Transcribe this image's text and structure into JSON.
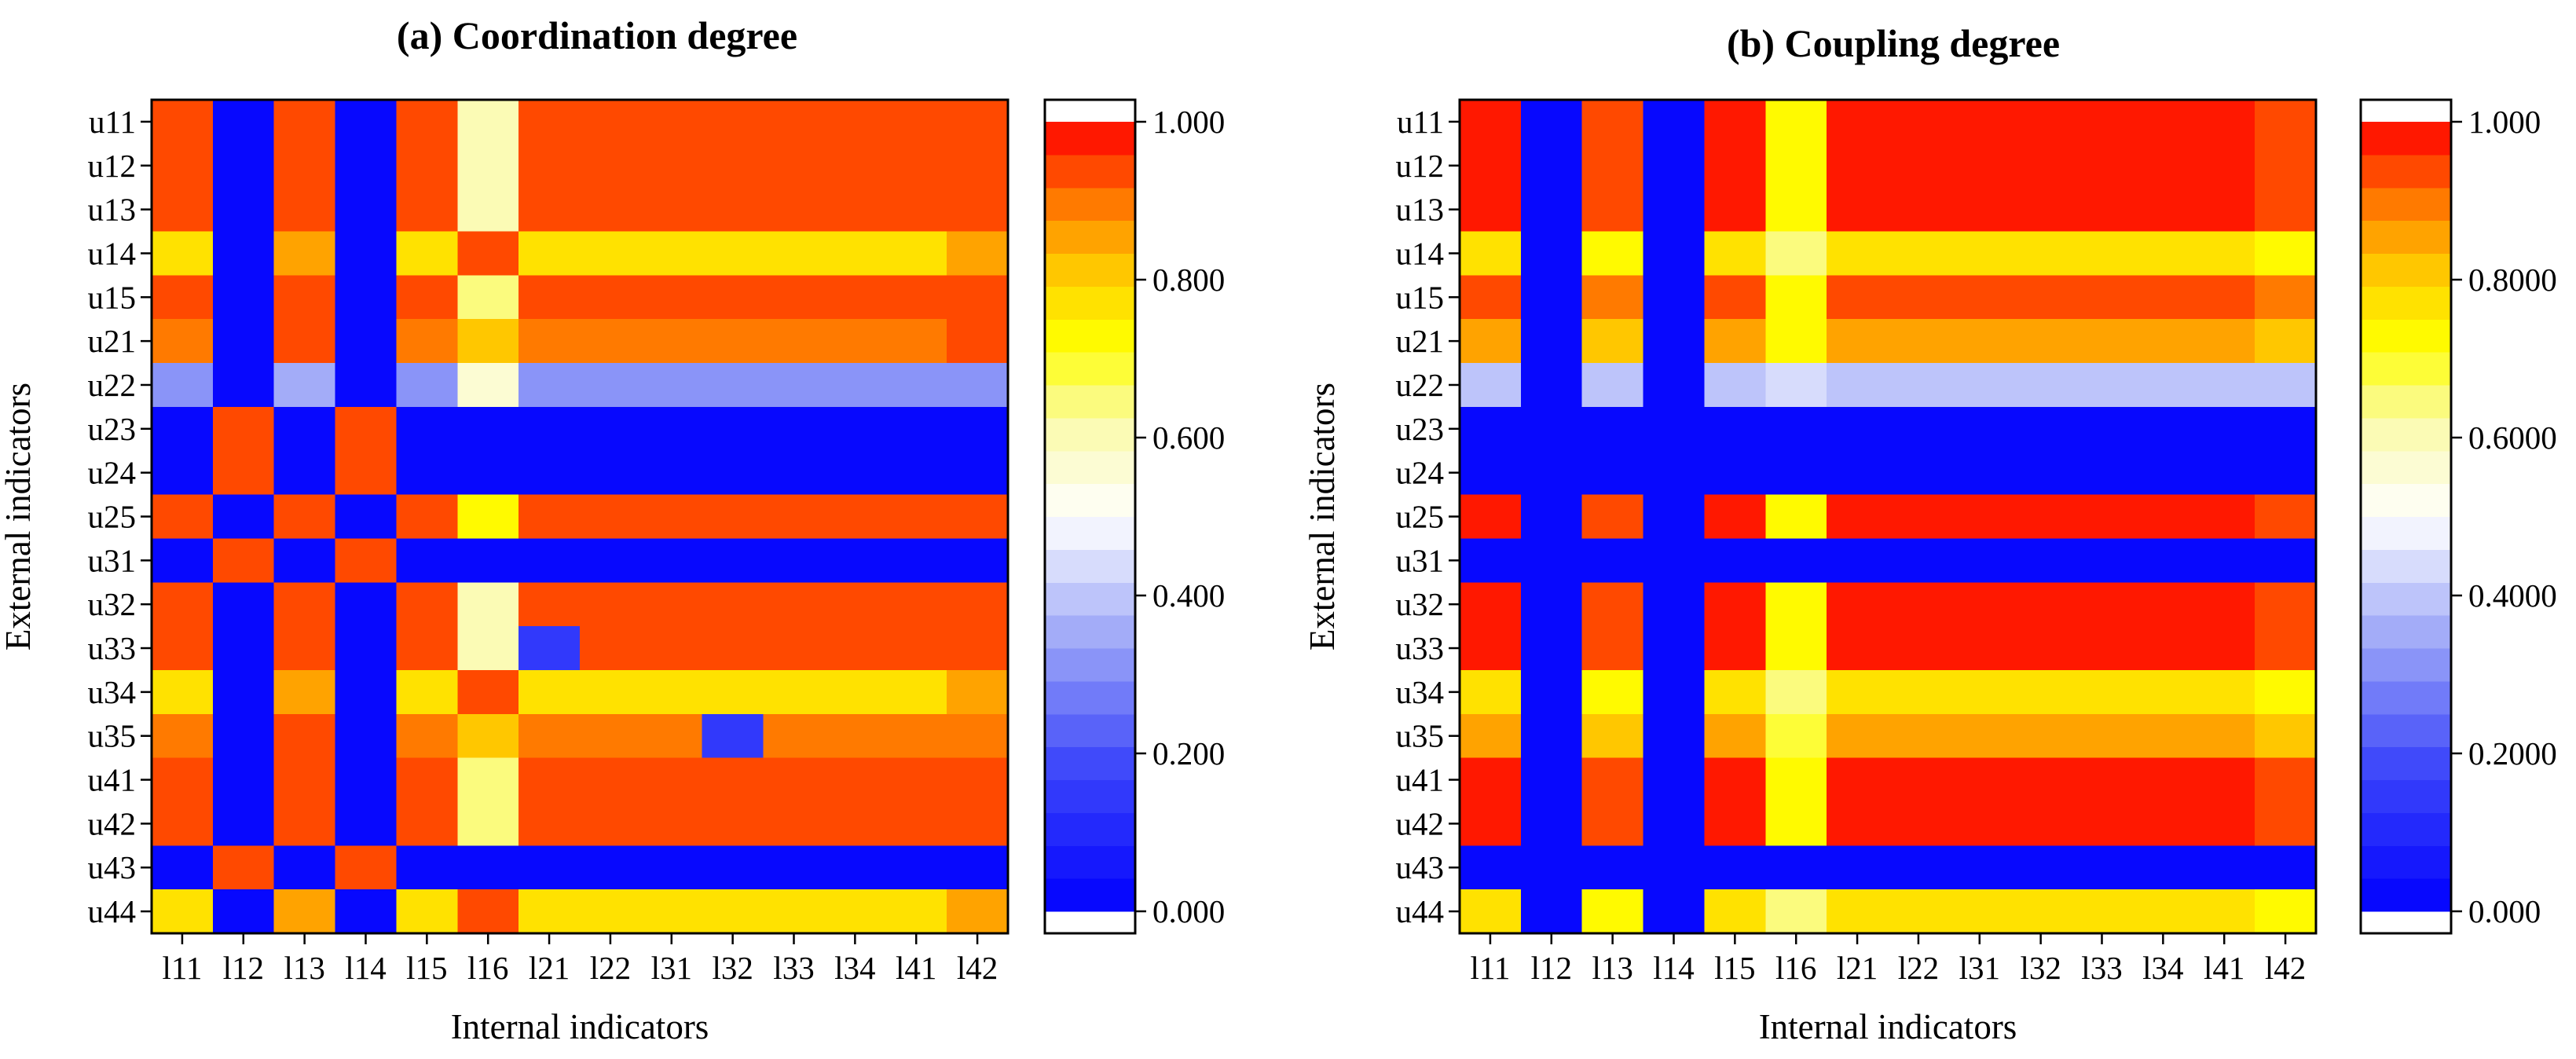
{
  "chart_data": [
    {
      "type": "heatmap",
      "title": "(a) Coordination degree",
      "xlabel": "Internal indicators",
      "ylabel": "External indicators",
      "x_categories": [
        "l11",
        "l12",
        "l13",
        "l14",
        "l15",
        "l16",
        "l21",
        "l22",
        "l31",
        "l32",
        "l33",
        "l34",
        "l41",
        "l42"
      ],
      "y_categories": [
        "u11",
        "u12",
        "u13",
        "u14",
        "u15",
        "u21",
        "u22",
        "u23",
        "u24",
        "u25",
        "u31",
        "u32",
        "u33",
        "u34",
        "u35",
        "u41",
        "u42",
        "u43",
        "u44"
      ],
      "values": [
        [
          0.95,
          0.02,
          0.95,
          0.02,
          0.95,
          0.62,
          0.95,
          0.95,
          0.95,
          0.95,
          0.95,
          0.95,
          0.95,
          0.95
        ],
        [
          0.95,
          0.02,
          0.95,
          0.02,
          0.95,
          0.62,
          0.95,
          0.95,
          0.95,
          0.95,
          0.95,
          0.95,
          0.95,
          0.95
        ],
        [
          0.95,
          0.02,
          0.95,
          0.02,
          0.95,
          0.62,
          0.95,
          0.95,
          0.95,
          0.95,
          0.95,
          0.95,
          0.95,
          0.95
        ],
        [
          0.79,
          0.02,
          0.87,
          0.02,
          0.79,
          0.95,
          0.79,
          0.79,
          0.79,
          0.79,
          0.79,
          0.79,
          0.79,
          0.85
        ],
        [
          0.95,
          0.02,
          0.95,
          0.02,
          0.95,
          0.66,
          0.95,
          0.95,
          0.95,
          0.95,
          0.95,
          0.95,
          0.95,
          0.95
        ],
        [
          0.88,
          0.02,
          0.95,
          0.02,
          0.88,
          0.83,
          0.88,
          0.88,
          0.88,
          0.88,
          0.88,
          0.88,
          0.88,
          0.95
        ],
        [
          0.3,
          0.02,
          0.37,
          0.02,
          0.3,
          0.57,
          0.3,
          0.3,
          0.3,
          0.3,
          0.3,
          0.3,
          0.3,
          0.32
        ],
        [
          0.02,
          0.95,
          0.02,
          0.95,
          0.02,
          0.02,
          0.02,
          0.02,
          0.02,
          0.02,
          0.02,
          0.02,
          0.02,
          0.02
        ],
        [
          0.02,
          0.95,
          0.02,
          0.95,
          0.02,
          0.02,
          0.02,
          0.02,
          0.02,
          0.02,
          0.02,
          0.02,
          0.02,
          0.02
        ],
        [
          0.95,
          0.02,
          0.95,
          0.02,
          0.95,
          0.72,
          0.95,
          0.95,
          0.95,
          0.95,
          0.95,
          0.95,
          0.95,
          0.95
        ],
        [
          0.02,
          0.95,
          0.02,
          0.95,
          0.02,
          0.02,
          0.02,
          0.02,
          0.02,
          0.02,
          0.02,
          0.02,
          0.02,
          0.02
        ],
        [
          0.95,
          0.02,
          0.95,
          0.02,
          0.95,
          0.62,
          0.95,
          0.95,
          0.95,
          0.95,
          0.95,
          0.95,
          0.95,
          0.95
        ],
        [
          0.95,
          0.02,
          0.95,
          0.02,
          0.95,
          0.62,
          0.13,
          0.95,
          0.95,
          0.95,
          0.95,
          0.95,
          0.95,
          0.95
        ],
        [
          0.79,
          0.02,
          0.87,
          0.02,
          0.79,
          0.95,
          0.79,
          0.79,
          0.79,
          0.79,
          0.79,
          0.79,
          0.79,
          0.85
        ],
        [
          0.88,
          0.02,
          0.95,
          0.02,
          0.88,
          0.83,
          0.88,
          0.88,
          0.88,
          0.13,
          0.88,
          0.88,
          0.88,
          0.88
        ],
        [
          0.95,
          0.02,
          0.95,
          0.02,
          0.95,
          0.66,
          0.95,
          0.95,
          0.95,
          0.95,
          0.95,
          0.95,
          0.95,
          0.95
        ],
        [
          0.95,
          0.02,
          0.95,
          0.02,
          0.95,
          0.66,
          0.95,
          0.95,
          0.95,
          0.95,
          0.95,
          0.95,
          0.95,
          0.95
        ],
        [
          0.02,
          0.95,
          0.02,
          0.95,
          0.02,
          0.02,
          0.02,
          0.02,
          0.02,
          0.02,
          0.02,
          0.02,
          0.02,
          0.02
        ],
        [
          0.79,
          0.02,
          0.87,
          0.02,
          0.79,
          0.95,
          0.79,
          0.79,
          0.79,
          0.79,
          0.79,
          0.79,
          0.79,
          0.85
        ]
      ],
      "colorbar": {
        "range": [
          0,
          1
        ],
        "levels": 24,
        "tick_values": [
          0,
          0.2,
          0.4,
          0.6,
          0.8,
          1.0
        ],
        "tick_labels": [
          "0.000",
          "0.200",
          "0.400",
          "0.600",
          "0.800",
          "1.000"
        ]
      }
    },
    {
      "type": "heatmap",
      "title": "(b) Coupling degree",
      "xlabel": "Internal indicators",
      "ylabel": "External indicators",
      "x_categories": [
        "l11",
        "l12",
        "l13",
        "l14",
        "l15",
        "l16",
        "l21",
        "l22",
        "l31",
        "l32",
        "l33",
        "l34",
        "l41",
        "l42"
      ],
      "y_categories": [
        "u11",
        "u12",
        "u13",
        "u14",
        "u15",
        "u21",
        "u22",
        "u23",
        "u24",
        "u25",
        "u31",
        "u32",
        "u33",
        "u34",
        "u35",
        "u41",
        "u42",
        "u43",
        "u44"
      ],
      "values": [
        [
          0.96,
          0.02,
          0.92,
          0.02,
          0.96,
          0.72,
          0.96,
          0.96,
          0.96,
          0.96,
          0.96,
          0.96,
          0.96,
          0.92
        ],
        [
          0.96,
          0.02,
          0.92,
          0.02,
          0.96,
          0.72,
          0.96,
          0.96,
          0.96,
          0.96,
          0.96,
          0.96,
          0.96,
          0.92
        ],
        [
          0.96,
          0.02,
          0.92,
          0.02,
          0.96,
          0.72,
          0.96,
          0.96,
          0.96,
          0.96,
          0.96,
          0.96,
          0.96,
          0.92
        ],
        [
          0.76,
          0.02,
          0.72,
          0.02,
          0.76,
          0.64,
          0.78,
          0.78,
          0.78,
          0.78,
          0.78,
          0.78,
          0.78,
          0.72
        ],
        [
          0.92,
          0.02,
          0.9,
          0.02,
          0.92,
          0.72,
          0.92,
          0.92,
          0.92,
          0.92,
          0.92,
          0.92,
          0.92,
          0.9
        ],
        [
          0.85,
          0.02,
          0.82,
          0.02,
          0.85,
          0.72,
          0.85,
          0.85,
          0.85,
          0.85,
          0.85,
          0.85,
          0.85,
          0.82
        ],
        [
          0.39,
          0.02,
          0.38,
          0.02,
          0.39,
          0.45,
          0.39,
          0.39,
          0.39,
          0.39,
          0.39,
          0.39,
          0.39,
          0.39
        ],
        [
          0.02,
          0.02,
          0.02,
          0.02,
          0.02,
          0.02,
          0.02,
          0.02,
          0.02,
          0.02,
          0.02,
          0.02,
          0.02,
          0.02
        ],
        [
          0.02,
          0.02,
          0.02,
          0.02,
          0.02,
          0.02,
          0.02,
          0.02,
          0.02,
          0.02,
          0.02,
          0.02,
          0.02,
          0.02
        ],
        [
          0.96,
          0.02,
          0.92,
          0.02,
          0.96,
          0.72,
          0.96,
          0.96,
          0.96,
          0.96,
          0.96,
          0.96,
          0.96,
          0.92
        ],
        [
          0.02,
          0.02,
          0.02,
          0.02,
          0.02,
          0.02,
          0.02,
          0.02,
          0.02,
          0.02,
          0.02,
          0.02,
          0.02,
          0.02
        ],
        [
          0.96,
          0.02,
          0.92,
          0.02,
          0.96,
          0.72,
          0.96,
          0.96,
          0.96,
          0.96,
          0.96,
          0.96,
          0.96,
          0.92
        ],
        [
          0.96,
          0.02,
          0.92,
          0.02,
          0.96,
          0.72,
          0.96,
          0.96,
          0.96,
          0.96,
          0.96,
          0.96,
          0.96,
          0.92
        ],
        [
          0.78,
          0.02,
          0.72,
          0.02,
          0.78,
          0.64,
          0.78,
          0.78,
          0.78,
          0.78,
          0.78,
          0.78,
          0.78,
          0.72
        ],
        [
          0.85,
          0.02,
          0.82,
          0.02,
          0.85,
          0.7,
          0.85,
          0.85,
          0.85,
          0.85,
          0.85,
          0.85,
          0.85,
          0.82
        ],
        [
          0.96,
          0.02,
          0.92,
          0.02,
          0.96,
          0.72,
          0.96,
          0.96,
          0.96,
          0.96,
          0.96,
          0.96,
          0.96,
          0.92
        ],
        [
          0.96,
          0.02,
          0.92,
          0.02,
          0.96,
          0.72,
          0.96,
          0.96,
          0.96,
          0.96,
          0.96,
          0.96,
          0.96,
          0.92
        ],
        [
          0.02,
          0.02,
          0.02,
          0.02,
          0.02,
          0.02,
          0.02,
          0.02,
          0.02,
          0.02,
          0.02,
          0.02,
          0.02,
          0.02
        ],
        [
          0.78,
          0.02,
          0.72,
          0.02,
          0.78,
          0.64,
          0.78,
          0.78,
          0.78,
          0.78,
          0.78,
          0.78,
          0.78,
          0.72
        ]
      ],
      "colorbar": {
        "range": [
          0,
          1
        ],
        "levels": 24,
        "tick_values": [
          0,
          0.2,
          0.4,
          0.6,
          0.8,
          1.0
        ],
        "tick_labels": [
          "0.000",
          "0.2000",
          "0.4000",
          "0.6000",
          "0.8000",
          "1.000"
        ]
      }
    }
  ]
}
